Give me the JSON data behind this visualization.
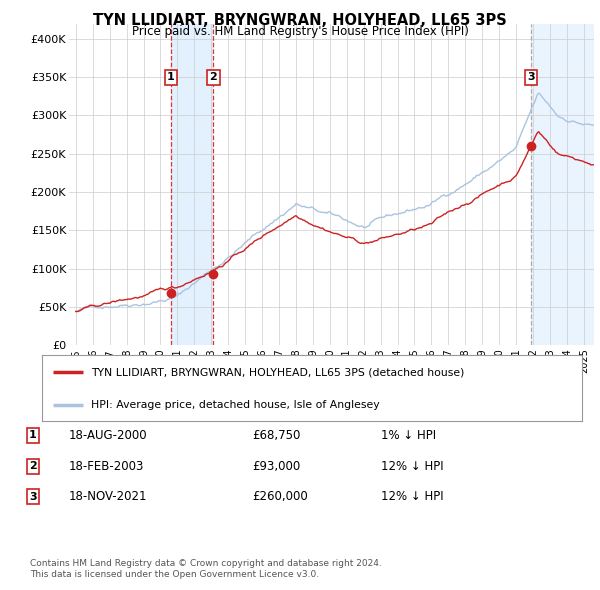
{
  "title": "TYN LLIDIART, BRYNGWRAN, HOLYHEAD, LL65 3PS",
  "subtitle": "Price paid vs. HM Land Registry's House Price Index (HPI)",
  "hpi_color": "#aac4e0",
  "price_color": "#cc2222",
  "dot_color": "#cc2222",
  "bg_color": "#ffffff",
  "grid_color": "#cccccc",
  "highlight_color": "#ddeeff",
  "ylim": [
    0,
    420000
  ],
  "yticks": [
    0,
    50000,
    100000,
    150000,
    200000,
    250000,
    300000,
    350000,
    400000
  ],
  "ytick_labels": [
    "£0",
    "£50K",
    "£100K",
    "£150K",
    "£200K",
    "£250K",
    "£300K",
    "£350K",
    "£400K"
  ],
  "xlim_start": 1994.6,
  "xlim_end": 2025.6,
  "xticks": [
    1995,
    1996,
    1997,
    1998,
    1999,
    2000,
    2001,
    2002,
    2003,
    2004,
    2005,
    2006,
    2007,
    2008,
    2009,
    2010,
    2011,
    2012,
    2013,
    2014,
    2015,
    2016,
    2017,
    2018,
    2019,
    2020,
    2021,
    2022,
    2023,
    2024,
    2025
  ],
  "sale_events": [
    {
      "label": "1",
      "year": 2000.625,
      "price": 68750
    },
    {
      "label": "2",
      "year": 2003.125,
      "price": 93000
    },
    {
      "label": "3",
      "year": 2021.875,
      "price": 260000
    }
  ],
  "legend_line1": "TYN LLIDIART, BRYNGWRAN, HOLYHEAD, LL65 3PS (detached house)",
  "legend_line2": "HPI: Average price, detached house, Isle of Anglesey",
  "table_rows": [
    {
      "num": "1",
      "date": "18-AUG-2000",
      "price": "£68,750",
      "hpi": "1% ↓ HPI"
    },
    {
      "num": "2",
      "date": "18-FEB-2003",
      "price": "£93,000",
      "hpi": "12% ↓ HPI"
    },
    {
      "num": "3",
      "date": "18-NOV-2021",
      "price": "£260,000",
      "hpi": "12% ↓ HPI"
    }
  ],
  "footnote1": "Contains HM Land Registry data © Crown copyright and database right 2024.",
  "footnote2": "This data is licensed under the Open Government Licence v3.0."
}
